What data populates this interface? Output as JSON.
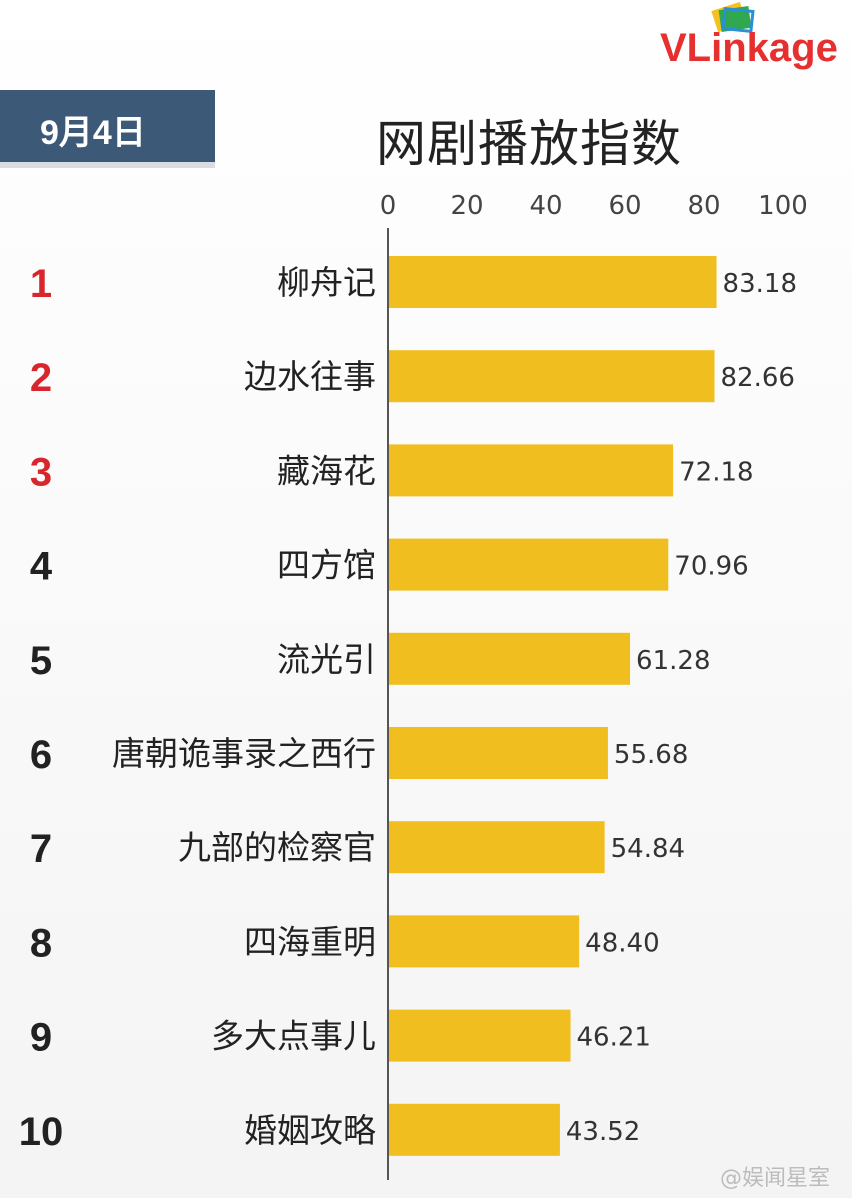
{
  "header": {
    "date_badge": "9月4日",
    "title": "网剧播放指数",
    "logo_text": "VLinkage",
    "logo_icon": "stacked-cards-icon"
  },
  "watermark": "@娱闻星室",
  "colors": {
    "bar": "#f0be1e",
    "rank_top": "#d9262c",
    "rank_other": "#222222",
    "badge": "#3c5a78",
    "axis": "#555555"
  },
  "chart_data": {
    "type": "bar",
    "orientation": "horizontal",
    "title": "网剧播放指数",
    "xlim": [
      0,
      100
    ],
    "x_ticks": [
      "0",
      "20",
      "40",
      "60",
      "80",
      "100"
    ],
    "x_tick_values": [
      0,
      20,
      40,
      60,
      80,
      100
    ],
    "ranks": [
      "1",
      "2",
      "3",
      "4",
      "5",
      "6",
      "7",
      "8",
      "9",
      "10"
    ],
    "categories": [
      "柳舟记",
      "边水往事",
      "藏海花",
      "四方馆",
      "流光引",
      "唐朝诡事录之西行",
      "九部的检察官",
      "四海重明",
      "多大点事儿",
      "婚姻攻略"
    ],
    "values": [
      83.18,
      82.66,
      72.18,
      70.96,
      61.28,
      55.68,
      54.84,
      48.4,
      46.21,
      43.52
    ],
    "value_labels": [
      "83.18",
      "82.66",
      "72.18",
      "70.96",
      "61.28",
      "55.68",
      "54.84",
      "48.40",
      "46.21",
      "43.52"
    ],
    "grid": false,
    "legend": "none"
  }
}
